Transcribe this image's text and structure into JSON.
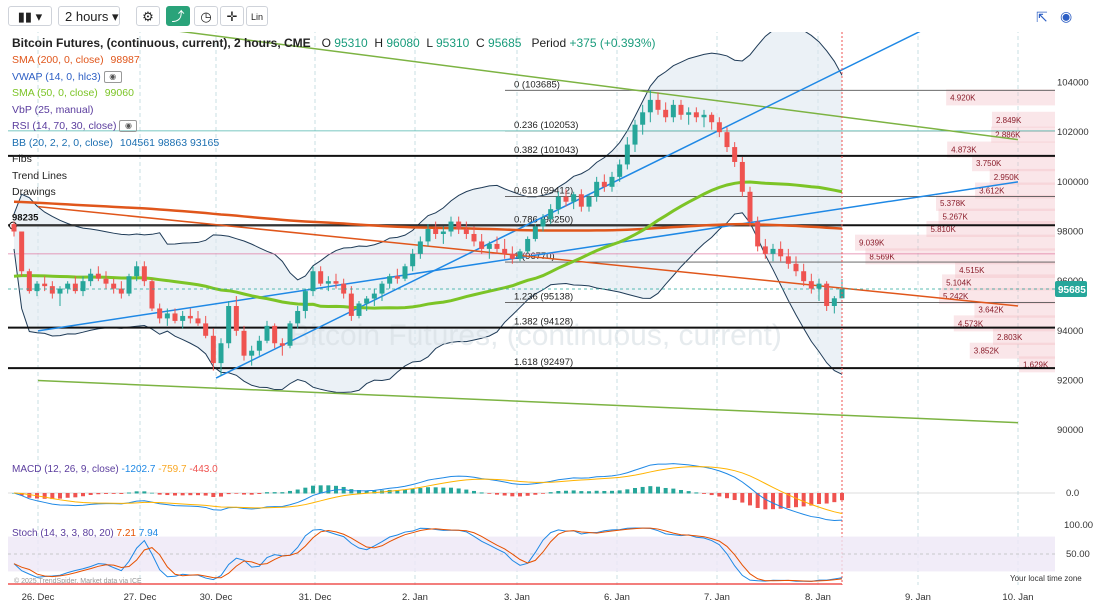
{
  "toolbar": {
    "chart_type_icon": "candlestick-icon",
    "interval": "2 hours",
    "settings_icon": "gear-icon",
    "indicator_icon": "indicator-icon",
    "clock_icon": "clock-icon",
    "crosshair_icon": "crosshair-icon",
    "scale_label": "Lin",
    "fullscreen_icon": "fullscreen-icon",
    "camera_icon": "camera-icon"
  },
  "header": {
    "title": "Bitcoin Futures, (continuous, current), 2 hours, CME",
    "o_label": "O",
    "o": "95310",
    "h_label": "H",
    "h": "96080",
    "l_label": "L",
    "l": "95310",
    "c_label": "C",
    "c": "95685",
    "period_label": "Period",
    "period": "+375 (+0.393%)"
  },
  "indicators": [
    {
      "label": "SMA (200, 0, close)",
      "value": "98987",
      "color": "#e0561b"
    },
    {
      "label": "VWAP (14, 0, hlc3)",
      "value": "",
      "color": "#2d5fc4",
      "eye": true
    },
    {
      "label": "SMA (50, 0, close)",
      "value": "99060",
      "color": "#7cc426"
    },
    {
      "label": "VbP (25, manual)",
      "value": "",
      "color": "#5b3d9e"
    },
    {
      "label": "RSI (14, 70, 30, close)",
      "value": "",
      "color": "#5b3d9e",
      "eye": true
    },
    {
      "label": "BB (20, 2, 2, 0, close)",
      "value": "104561 98863 93165",
      "color": "#1c6fb1"
    },
    {
      "label": "Fibs",
      "value": "",
      "color": "#222"
    },
    {
      "label": "Trend Lines",
      "value": "",
      "color": "#222"
    },
    {
      "label": "Drawings",
      "value": "",
      "color": "#222"
    }
  ],
  "watermark": "Bitcoin Futures, (continuous, current)",
  "hline_label": "98235",
  "price_badge": "95685",
  "macd": {
    "label": "MACD (12, 26, 9, close)",
    "v1": "-1202.7",
    "v2": "-759.7",
    "v3": "-443.0",
    "axis": "0.0"
  },
  "stoch": {
    "label": "Stoch (14, 3, 3, 80, 20)",
    "v1": "7.21",
    "v2": "7.94",
    "axis_high": "100.00",
    "axis_mid": "50.00"
  },
  "copyright": "© 2025 TrendSpider. Market data via ICE",
  "local_time": "Your local time zone",
  "colors": {
    "up": "#26a69a",
    "down": "#ef5350",
    "sma200": "#e0561b",
    "sma50": "#7cc426",
    "trend_blue": "#1e88e5",
    "trend_green": "#7cb342",
    "bb": "#1f3b57",
    "bb_fill": "#dde7f0"
  },
  "chart_data": {
    "type": "candlestick",
    "title": "Bitcoin Futures, (continuous, current), 2 hours, CME",
    "x_labels": [
      "26. Dec",
      "27. Dec",
      "30. Dec",
      "31. Dec",
      "2. Jan",
      "3. Jan",
      "6. Jan",
      "7. Jan",
      "8. Jan",
      "9. Jan",
      "10. Jan"
    ],
    "y_ticks": [
      90000,
      92000,
      94000,
      96000,
      98000,
      100000,
      102000,
      104000
    ],
    "y_tick_labels": [
      "90000",
      "92000",
      "94000",
      "96000",
      "98000",
      "100000",
      "102000",
      "104000"
    ],
    "ylim": [
      89000,
      107000
    ],
    "fib_levels": [
      {
        "label": "0 (103685)",
        "price": 103685
      },
      {
        "label": "0.236 (102053)",
        "price": 102053
      },
      {
        "label": "0.382 (101043)",
        "price": 101043
      },
      {
        "label": "0.618 (99412)",
        "price": 99412
      },
      {
        "label": "0.786 (98250)",
        "price": 98250
      },
      {
        "label": "1 (96770)",
        "price": 96770
      },
      {
        "label": "1.236 (95138)",
        "price": 95138
      },
      {
        "label": "1.382 (94128)",
        "price": 94128
      },
      {
        "label": "1.618 (92497)",
        "price": 92497
      }
    ],
    "volume_profile": [
      {
        "label": "4.920K",
        "price": 103400
      },
      {
        "label": "2.849K",
        "price": 102500
      },
      {
        "label": "2.886K",
        "price": 101900
      },
      {
        "label": "4.873K",
        "price": 101300
      },
      {
        "label": "3.750K",
        "price": 100750
      },
      {
        "label": "2.950K",
        "price": 100200
      },
      {
        "label": "3.612K",
        "price": 99650
      },
      {
        "label": "5.378K",
        "price": 99150
      },
      {
        "label": "5.267K",
        "price": 98600
      },
      {
        "label": "5.810K",
        "price": 98100
      },
      {
        "label": "9.039K",
        "price": 97550
      },
      {
        "label": "8.569K",
        "price": 97000
      },
      {
        "label": "4.515K",
        "price": 96450
      },
      {
        "label": "5.104K",
        "price": 95950
      },
      {
        "label": "5.242K",
        "price": 95400
      },
      {
        "label": "3.642K",
        "price": 94850
      },
      {
        "label": "4.573K",
        "price": 94300
      },
      {
        "label": "2.803K",
        "price": 93750
      },
      {
        "label": "3.852K",
        "price": 93200
      },
      {
        "label": "1.629K",
        "price": 92650
      }
    ],
    "candles": [
      [
        98300,
        98400,
        97800,
        98000
      ],
      [
        98000,
        98000,
        96200,
        96400
      ],
      [
        96400,
        96500,
        95500,
        95600
      ],
      [
        95600,
        96000,
        95400,
        95900
      ],
      [
        95900,
        96200,
        95600,
        95800
      ],
      [
        95800,
        96000,
        95300,
        95500
      ],
      [
        95500,
        95800,
        95000,
        95700
      ],
      [
        95700,
        96000,
        95500,
        95900
      ],
      [
        95900,
        96200,
        95500,
        95600
      ],
      [
        95600,
        96200,
        95400,
        96000
      ],
      [
        96000,
        96500,
        95800,
        96300
      ],
      [
        96300,
        96600,
        96000,
        96100
      ],
      [
        96100,
        96400,
        95700,
        95900
      ],
      [
        95900,
        96100,
        95500,
        95700
      ],
      [
        95700,
        96000,
        95300,
        95500
      ],
      [
        95500,
        96300,
        95400,
        96200
      ],
      [
        96200,
        96800,
        96000,
        96600
      ],
      [
        96600,
        96800,
        95800,
        96000
      ],
      [
        96000,
        96100,
        94800,
        94900
      ],
      [
        94900,
        95100,
        94300,
        94500
      ],
      [
        94500,
        94900,
        94200,
        94700
      ],
      [
        94700,
        94900,
        94300,
        94400
      ],
      [
        94400,
        94800,
        94100,
        94600
      ],
      [
        94600,
        94900,
        94300,
        94500
      ],
      [
        94500,
        94800,
        94200,
        94300
      ],
      [
        94300,
        94600,
        93700,
        93800
      ],
      [
        93800,
        94100,
        92400,
        92700
      ],
      [
        92700,
        93700,
        92200,
        93500
      ],
      [
        93500,
        95200,
        93300,
        95000
      ],
      [
        95000,
        95400,
        93800,
        94000
      ],
      [
        94000,
        94200,
        92800,
        93000
      ],
      [
        93000,
        93400,
        92600,
        93200
      ],
      [
        93200,
        93800,
        93000,
        93600
      ],
      [
        93600,
        94400,
        93500,
        94200
      ],
      [
        94200,
        94300,
        93300,
        93500
      ],
      [
        93500,
        93700,
        93000,
        93400
      ],
      [
        93400,
        94400,
        93300,
        94300
      ],
      [
        94300,
        95000,
        94100,
        94800
      ],
      [
        94800,
        95700,
        94500,
        95600
      ],
      [
        95600,
        96600,
        95400,
        96400
      ],
      [
        96400,
        96600,
        95800,
        95900
      ],
      [
        95900,
        96200,
        95600,
        96000
      ],
      [
        96000,
        96300,
        95700,
        95900
      ],
      [
        95900,
        96100,
        95300,
        95500
      ],
      [
        95500,
        95800,
        94400,
        94600
      ],
      [
        94600,
        95200,
        94500,
        95100
      ],
      [
        95100,
        95400,
        94800,
        95300
      ],
      [
        95300,
        95700,
        95000,
        95500
      ],
      [
        95500,
        96000,
        95200,
        95900
      ],
      [
        95900,
        96300,
        95700,
        96200
      ],
      [
        96200,
        96500,
        95900,
        96100
      ],
      [
        96100,
        96700,
        96000,
        96600
      ],
      [
        96600,
        97300,
        96400,
        97100
      ],
      [
        97100,
        97800,
        96900,
        97600
      ],
      [
        97600,
        98300,
        97400,
        98100
      ],
      [
        98100,
        98400,
        97700,
        97900
      ],
      [
        97900,
        98200,
        97500,
        98000
      ],
      [
        98000,
        98600,
        97800,
        98400
      ],
      [
        98400,
        98600,
        97900,
        98100
      ],
      [
        98100,
        98400,
        97700,
        97900
      ],
      [
        97900,
        98200,
        97400,
        97600
      ],
      [
        97600,
        97900,
        97100,
        97300
      ],
      [
        97300,
        97600,
        96900,
        97500
      ],
      [
        97500,
        97800,
        97100,
        97300
      ],
      [
        97300,
        97700,
        96900,
        97100
      ],
      [
        97100,
        97400,
        96700,
        96900
      ],
      [
        96900,
        97300,
        96800,
        97200
      ],
      [
        97200,
        97800,
        97100,
        97700
      ],
      [
        97700,
        98300,
        97600,
        98200
      ],
      [
        98200,
        98700,
        98000,
        98500
      ],
      [
        98500,
        99100,
        98300,
        98900
      ],
      [
        98900,
        99600,
        98700,
        99400
      ],
      [
        99400,
        99700,
        99000,
        99200
      ],
      [
        99200,
        99600,
        98900,
        99500
      ],
      [
        99500,
        99700,
        98800,
        99000
      ],
      [
        99000,
        99500,
        98800,
        99400
      ],
      [
        99400,
        100200,
        99200,
        100000
      ],
      [
        100000,
        100300,
        99600,
        99800
      ],
      [
        99800,
        100400,
        99600,
        100200
      ],
      [
        100200,
        100900,
        100000,
        100700
      ],
      [
        100700,
        101800,
        100500,
        101500
      ],
      [
        101500,
        102500,
        101200,
        102300
      ],
      [
        102300,
        103100,
        101900,
        102800
      ],
      [
        102800,
        103700,
        102400,
        103300
      ],
      [
        103300,
        103600,
        102700,
        102900
      ],
      [
        102900,
        103200,
        102400,
        102600
      ],
      [
        102600,
        103300,
        102400,
        103100
      ],
      [
        103100,
        103300,
        102500,
        102700
      ],
      [
        102700,
        103000,
        102300,
        102800
      ],
      [
        102800,
        103000,
        102400,
        102600
      ],
      [
        102600,
        102900,
        102200,
        102700
      ],
      [
        102700,
        102800,
        102100,
        102400
      ],
      [
        102400,
        102600,
        101800,
        102000
      ],
      [
        102000,
        102200,
        101200,
        101400
      ],
      [
        101400,
        101600,
        100600,
        100800
      ],
      [
        100800,
        101000,
        99400,
        99600
      ],
      [
        99600,
        99800,
        98200,
        98400
      ],
      [
        98400,
        98600,
        97200,
        97400
      ],
      [
        97400,
        97700,
        96900,
        97100
      ],
      [
        97100,
        97500,
        96800,
        97300
      ],
      [
        97300,
        97600,
        96800,
        97000
      ],
      [
        97000,
        97300,
        96500,
        96700
      ],
      [
        96700,
        97000,
        96200,
        96400
      ],
      [
        96400,
        96700,
        95800,
        96000
      ],
      [
        96000,
        96300,
        95500,
        95700
      ],
      [
        95700,
        96100,
        95200,
        95900
      ],
      [
        95900,
        96000,
        94800,
        95000
      ],
      [
        95000,
        95400,
        94700,
        95310
      ],
      [
        95310,
        96080,
        95310,
        95685
      ]
    ],
    "trend_lines": [
      {
        "name": "green-channel-top",
        "points": [
          [
            "26. Dec",
            106800
          ],
          [
            "10. Jan",
            101700
          ]
        ]
      },
      {
        "name": "green-channel-bottom",
        "points": [
          [
            "26. Dec",
            92000
          ],
          [
            "10. Jan",
            90300
          ]
        ]
      },
      {
        "name": "blue-uptrend",
        "points": [
          [
            "26. Dec",
            94000
          ],
          [
            "10. Jan",
            100000
          ]
        ]
      },
      {
        "name": "blue-steep",
        "points": [
          [
            "30. Dec",
            92100
          ],
          [
            "10. Jan",
            108000
          ]
        ]
      },
      {
        "name": "red-downtrend",
        "points": [
          [
            "26. Dec",
            99000
          ],
          [
            "10. Jan",
            95000
          ]
        ]
      }
    ],
    "macd_range": [
      -1500,
      1500
    ],
    "stoch_range": [
      0,
      100
    ],
    "grid": true
  }
}
